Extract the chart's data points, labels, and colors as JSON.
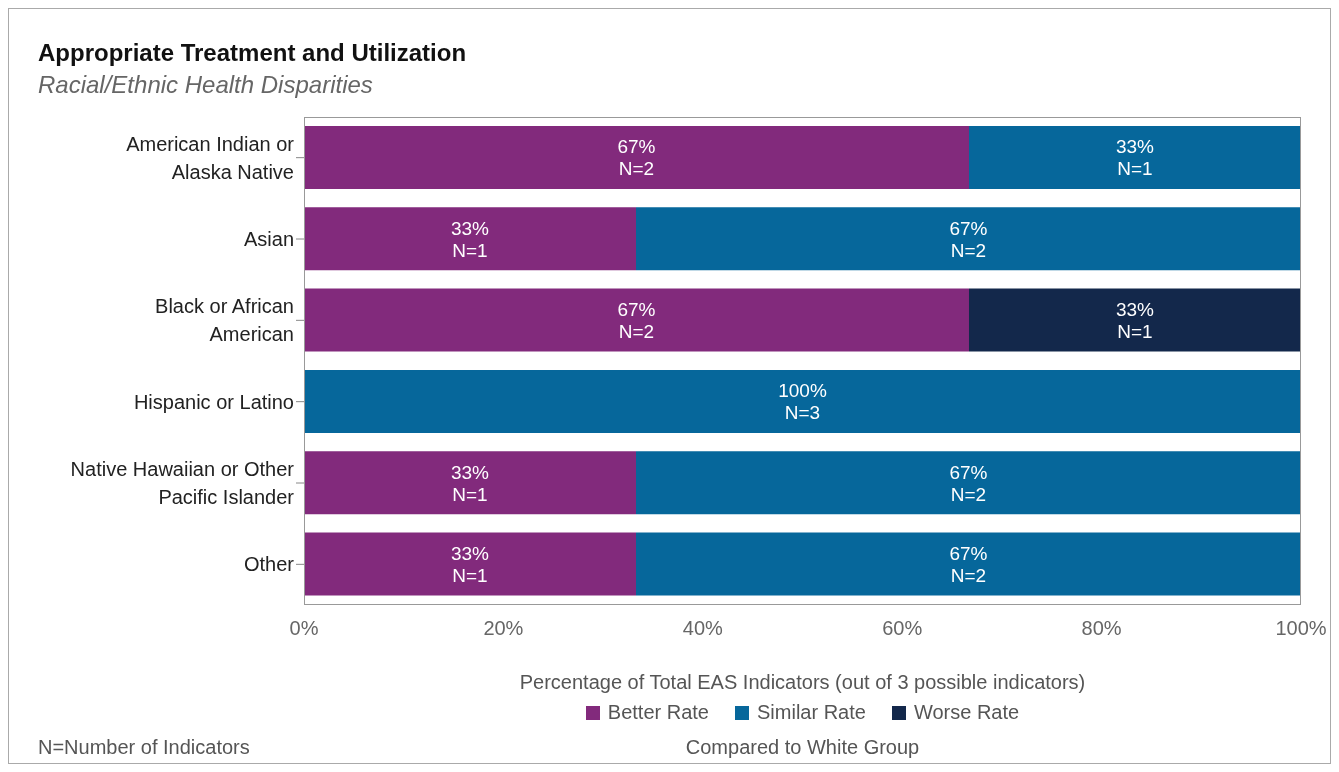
{
  "chart_data": {
    "type": "bar",
    "orientation": "horizontal",
    "stacked": true,
    "title": "Appropriate Treatment and Utilization",
    "subtitle": "Racial/Ethnic Health Disparities",
    "xlabel": "Percentage of Total EAS Indicators (out of 3 possible indicators)",
    "categories": [
      "American Indian or Alaska Native",
      "Asian",
      "Black or African American",
      "Hispanic or Latino",
      "Native Hawaiian or Other Pacific Islander",
      "Other"
    ],
    "series": [
      {
        "name": "Better Rate",
        "color": "#822a7c",
        "values": [
          66.7,
          33.3,
          66.7,
          null,
          33.3,
          33.3
        ],
        "value_labels": [
          "67%\nN=2",
          "33%\nN=1",
          "67%\nN=2",
          null,
          "33%\nN=1",
          "33%\nN=1"
        ]
      },
      {
        "name": "Similar Rate",
        "color": "#06679b",
        "values": [
          33.3,
          66.7,
          null,
          100,
          66.7,
          66.7
        ],
        "value_labels": [
          "33%\nN=1",
          "67%\nN=2",
          null,
          "100%\nN=3",
          "67%\nN=2",
          "67%\nN=2"
        ]
      },
      {
        "name": "Worse Rate",
        "color": "#13284b",
        "values": [
          null,
          null,
          33.3,
          null,
          null,
          null
        ],
        "value_labels": [
          null,
          null,
          "33%\nN=1",
          null,
          null,
          null
        ]
      }
    ],
    "xlim": [
      0,
      100
    ],
    "xticks": [
      {
        "value": 0,
        "label": "0%"
      },
      {
        "value": 20,
        "label": "20%"
      },
      {
        "value": 40,
        "label": "40%"
      },
      {
        "value": 60,
        "label": "60%"
      },
      {
        "value": 80,
        "label": "80%"
      },
      {
        "value": 100,
        "label": "100%"
      }
    ],
    "legend": "bottom",
    "annotations": [
      "N=Number of Indicators",
      "Compared to White Group"
    ]
  }
}
